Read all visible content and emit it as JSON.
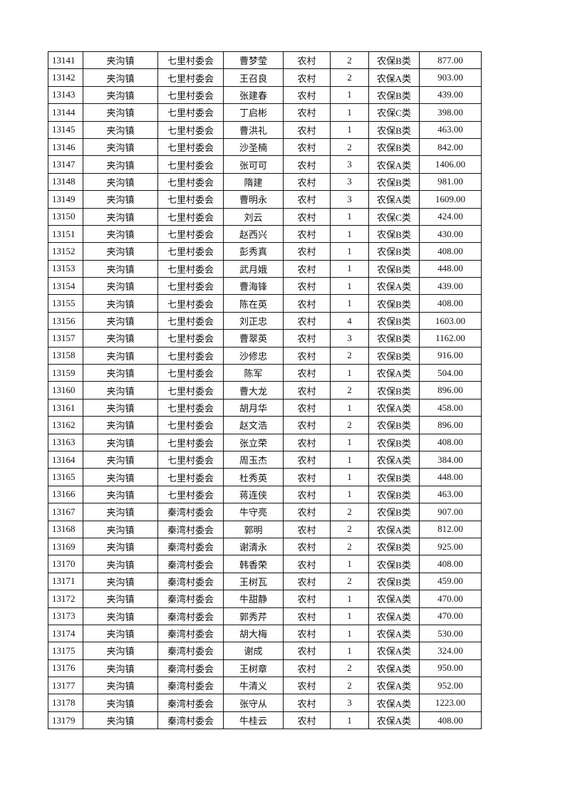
{
  "rows": [
    [
      "13141",
      "夹沟镇",
      "七里村委会",
      "曹梦莹",
      "农村",
      "2",
      "农保B类",
      "877.00"
    ],
    [
      "13142",
      "夹沟镇",
      "七里村委会",
      "王召良",
      "农村",
      "2",
      "农保A类",
      "903.00"
    ],
    [
      "13143",
      "夹沟镇",
      "七里村委会",
      "张建春",
      "农村",
      "1",
      "农保B类",
      "439.00"
    ],
    [
      "13144",
      "夹沟镇",
      "七里村委会",
      "丁启彬",
      "农村",
      "1",
      "农保C类",
      "398.00"
    ],
    [
      "13145",
      "夹沟镇",
      "七里村委会",
      "曹洪礼",
      "农村",
      "1",
      "农保B类",
      "463.00"
    ],
    [
      "13146",
      "夹沟镇",
      "七里村委会",
      "沙圣楠",
      "农村",
      "2",
      "农保B类",
      "842.00"
    ],
    [
      "13147",
      "夹沟镇",
      "七里村委会",
      "张可可",
      "农村",
      "3",
      "农保A类",
      "1406.00"
    ],
    [
      "13148",
      "夹沟镇",
      "七里村委会",
      "隋建",
      "农村",
      "3",
      "农保B类",
      "981.00"
    ],
    [
      "13149",
      "夹沟镇",
      "七里村委会",
      "曹明永",
      "农村",
      "3",
      "农保A类",
      "1609.00"
    ],
    [
      "13150",
      "夹沟镇",
      "七里村委会",
      "刘云",
      "农村",
      "1",
      "农保C类",
      "424.00"
    ],
    [
      "13151",
      "夹沟镇",
      "七里村委会",
      "赵西兴",
      "农村",
      "1",
      "农保B类",
      "430.00"
    ],
    [
      "13152",
      "夹沟镇",
      "七里村委会",
      "彭秀真",
      "农村",
      "1",
      "农保B类",
      "408.00"
    ],
    [
      "13153",
      "夹沟镇",
      "七里村委会",
      "武月娥",
      "农村",
      "1",
      "农保B类",
      "448.00"
    ],
    [
      "13154",
      "夹沟镇",
      "七里村委会",
      "曹海锋",
      "农村",
      "1",
      "农保A类",
      "439.00"
    ],
    [
      "13155",
      "夹沟镇",
      "七里村委会",
      "陈在英",
      "农村",
      "1",
      "农保B类",
      "408.00"
    ],
    [
      "13156",
      "夹沟镇",
      "七里村委会",
      "刘正忠",
      "农村",
      "4",
      "农保B类",
      "1603.00"
    ],
    [
      "13157",
      "夹沟镇",
      "七里村委会",
      "曹翠英",
      "农村",
      "3",
      "农保B类",
      "1162.00"
    ],
    [
      "13158",
      "夹沟镇",
      "七里村委会",
      "沙修忠",
      "农村",
      "2",
      "农保B类",
      "916.00"
    ],
    [
      "13159",
      "夹沟镇",
      "七里村委会",
      "陈军",
      "农村",
      "1",
      "农保A类",
      "504.00"
    ],
    [
      "13160",
      "夹沟镇",
      "七里村委会",
      "曹大龙",
      "农村",
      "2",
      "农保B类",
      "896.00"
    ],
    [
      "13161",
      "夹沟镇",
      "七里村委会",
      "胡月华",
      "农村",
      "1",
      "农保A类",
      "458.00"
    ],
    [
      "13162",
      "夹沟镇",
      "七里村委会",
      "赵文浩",
      "农村",
      "2",
      "农保B类",
      "896.00"
    ],
    [
      "13163",
      "夹沟镇",
      "七里村委会",
      "张立荣",
      "农村",
      "1",
      "农保B类",
      "408.00"
    ],
    [
      "13164",
      "夹沟镇",
      "七里村委会",
      "周玉杰",
      "农村",
      "1",
      "农保A类",
      "384.00"
    ],
    [
      "13165",
      "夹沟镇",
      "七里村委会",
      "杜秀英",
      "农村",
      "1",
      "农保B类",
      "448.00"
    ],
    [
      "13166",
      "夹沟镇",
      "七里村委会",
      "蒋连侠",
      "农村",
      "1",
      "农保B类",
      "463.00"
    ],
    [
      "13167",
      "夹沟镇",
      "秦湾村委会",
      "牛守亮",
      "农村",
      "2",
      "农保B类",
      "907.00"
    ],
    [
      "13168",
      "夹沟镇",
      "秦湾村委会",
      "郭明",
      "农村",
      "2",
      "农保A类",
      "812.00"
    ],
    [
      "13169",
      "夹沟镇",
      "秦湾村委会",
      "谢清永",
      "农村",
      "2",
      "农保B类",
      "925.00"
    ],
    [
      "13170",
      "夹沟镇",
      "秦湾村委会",
      "韩香荣",
      "农村",
      "1",
      "农保B类",
      "408.00"
    ],
    [
      "13171",
      "夹沟镇",
      "秦湾村委会",
      "王树瓦",
      "农村",
      "2",
      "农保B类",
      "459.00"
    ],
    [
      "13172",
      "夹沟镇",
      "秦湾村委会",
      "牛甜静",
      "农村",
      "1",
      "农保A类",
      "470.00"
    ],
    [
      "13173",
      "夹沟镇",
      "秦湾村委会",
      "郭秀芹",
      "农村",
      "1",
      "农保A类",
      "470.00"
    ],
    [
      "13174",
      "夹沟镇",
      "秦湾村委会",
      "胡大梅",
      "农村",
      "1",
      "农保A类",
      "530.00"
    ],
    [
      "13175",
      "夹沟镇",
      "秦湾村委会",
      "谢成",
      "农村",
      "1",
      "农保A类",
      "324.00"
    ],
    [
      "13176",
      "夹沟镇",
      "秦湾村委会",
      "王树章",
      "农村",
      "2",
      "农保A类",
      "950.00"
    ],
    [
      "13177",
      "夹沟镇",
      "秦湾村委会",
      "牛清义",
      "农村",
      "2",
      "农保A类",
      "952.00"
    ],
    [
      "13178",
      "夹沟镇",
      "秦湾村委会",
      "张守从",
      "农村",
      "3",
      "农保A类",
      "1223.00"
    ],
    [
      "13179",
      "夹沟镇",
      "秦湾村委会",
      "牛桂云",
      "农村",
      "1",
      "农保A类",
      "408.00"
    ]
  ]
}
